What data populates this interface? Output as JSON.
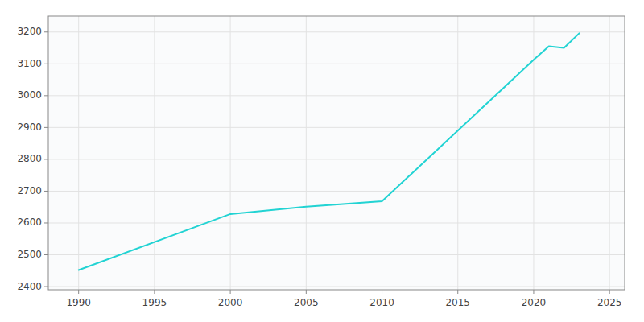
{
  "chart_data": {
    "type": "line",
    "x": [
      1990,
      2000,
      2005,
      2010,
      2020,
      2021,
      2022,
      2023
    ],
    "values": [
      2452,
      2628,
      2651,
      2668,
      3113,
      3155,
      3150,
      3196
    ],
    "color": "#22d3d3",
    "xlim": [
      1988,
      2026
    ],
    "ylim": [
      2390,
      3250
    ],
    "xticks": [
      1990,
      1995,
      2000,
      2005,
      2010,
      2015,
      2020,
      2025
    ],
    "yticks": [
      2400,
      2500,
      2600,
      2700,
      2800,
      2900,
      3000,
      3100,
      3200
    ],
    "grid": true
  }
}
